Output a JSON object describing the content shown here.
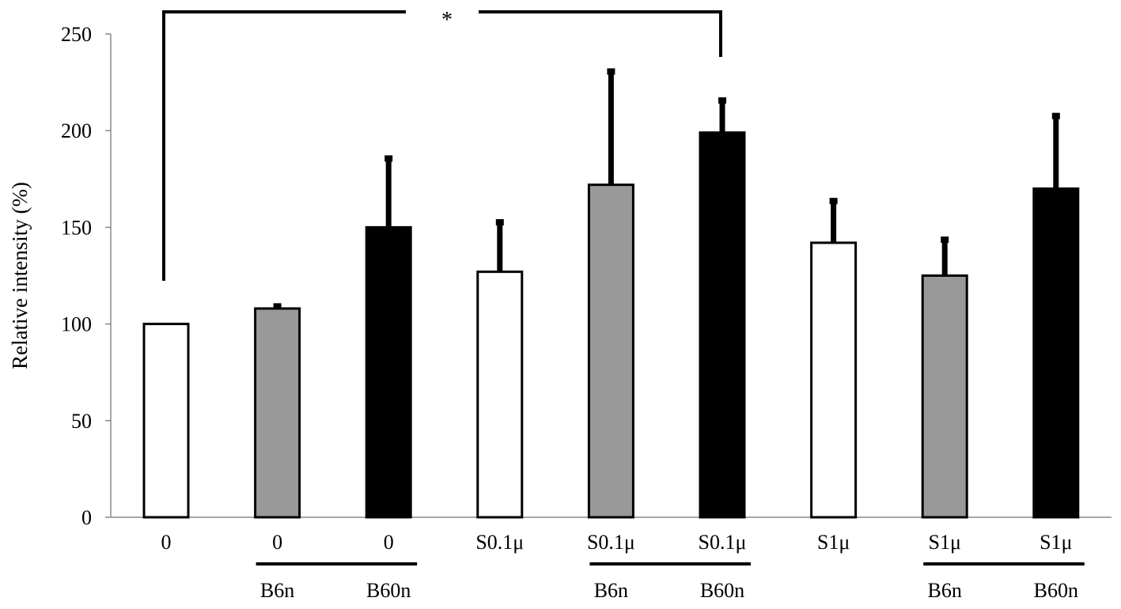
{
  "chart_data": {
    "type": "bar",
    "title": "",
    "xlabel": "",
    "ylabel": "Relative  intensity (%)",
    "ylim": [
      0,
      250
    ],
    "yticks": [
      0,
      50,
      100,
      150,
      200,
      250
    ],
    "grid": false,
    "legend": null,
    "categories": [
      {
        "top": "0",
        "bottom": ""
      },
      {
        "top": "0",
        "bottom": "B6n"
      },
      {
        "top": "0",
        "bottom": "B60n"
      },
      {
        "top": "S0.1μ",
        "bottom": ""
      },
      {
        "top": "S0.1μ",
        "bottom": "B6n"
      },
      {
        "top": "S0.1μ",
        "bottom": "B60n"
      },
      {
        "top": "S1μ",
        "bottom": ""
      },
      {
        "top": "S1μ",
        "bottom": "B6n"
      },
      {
        "top": "S1μ",
        "bottom": "B60n"
      }
    ],
    "values": [
      100,
      108,
      150,
      127,
      172,
      199,
      142,
      125,
      170
    ],
    "error_upper": [
      0,
      1.5,
      36,
      26,
      59,
      17,
      22,
      19,
      38
    ],
    "fill_colors": [
      "#ffffff",
      "#999999",
      "#000000",
      "#ffffff",
      "#999999",
      "#000000",
      "#ffffff",
      "#999999",
      "#000000"
    ],
    "group_underlines": [
      [
        1,
        2
      ],
      [
        4,
        5
      ],
      [
        7,
        8
      ]
    ],
    "significance": {
      "from": 0,
      "to": 5,
      "label": "*"
    }
  }
}
